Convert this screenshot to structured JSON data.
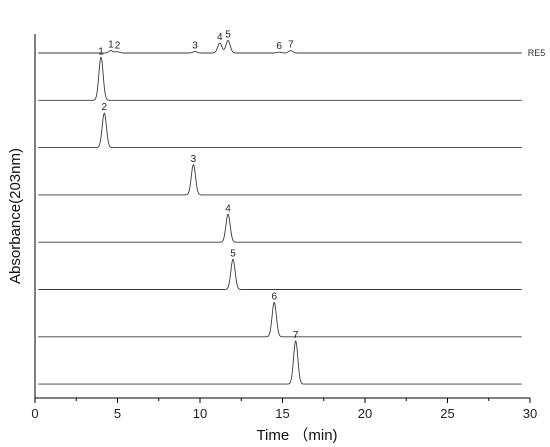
{
  "chart_data": {
    "type": "line",
    "xlabel": "Time （min)",
    "ylabel": "Absorbance(203nm)",
    "xlim": [
      0,
      30
    ],
    "x_ticks": [
      0,
      5,
      10,
      15,
      20,
      25,
      30
    ],
    "x_tick_labels": [
      "0",
      "5",
      "10",
      "15",
      "20",
      "25",
      "30"
    ],
    "grid": false,
    "legend": "none",
    "trace_start": 0.2,
    "trace_end": 29.5,
    "series": [
      {
        "name": "RE5",
        "peaks": [
          {
            "label": "1",
            "x": 4.6,
            "height": 0.55
          },
          {
            "label": "2",
            "x": 5.0,
            "height": 0.3
          },
          {
            "label": "3",
            "x": 9.7,
            "height": 0.35
          },
          {
            "label": "4",
            "x": 11.2,
            "height": 2.3
          },
          {
            "label": "5",
            "x": 11.7,
            "height": 2.9
          },
          {
            "label": "6",
            "x": 14.8,
            "height": 0.2
          },
          {
            "label": "7",
            "x": 15.5,
            "height": 0.55
          }
        ]
      },
      {
        "name": "",
        "peaks": [
          {
            "label": "1",
            "x": 4.0,
            "height": 10
          }
        ]
      },
      {
        "name": "",
        "peaks": [
          {
            "label": "2",
            "x": 4.2,
            "height": 8
          }
        ]
      },
      {
        "name": "",
        "peaks": [
          {
            "label": "3",
            "x": 9.6,
            "height": 7
          }
        ]
      },
      {
        "name": "",
        "peaks": [
          {
            "label": "4",
            "x": 11.7,
            "height": 6.5
          }
        ]
      },
      {
        "name": "",
        "peaks": [
          {
            "label": "5",
            "x": 12.0,
            "height": 7
          }
        ]
      },
      {
        "name": "",
        "peaks": [
          {
            "label": "6",
            "x": 14.5,
            "height": 8
          }
        ]
      },
      {
        "name": "",
        "peaks": [
          {
            "label": "7",
            "x": 15.8,
            "height": 10
          }
        ]
      }
    ]
  }
}
